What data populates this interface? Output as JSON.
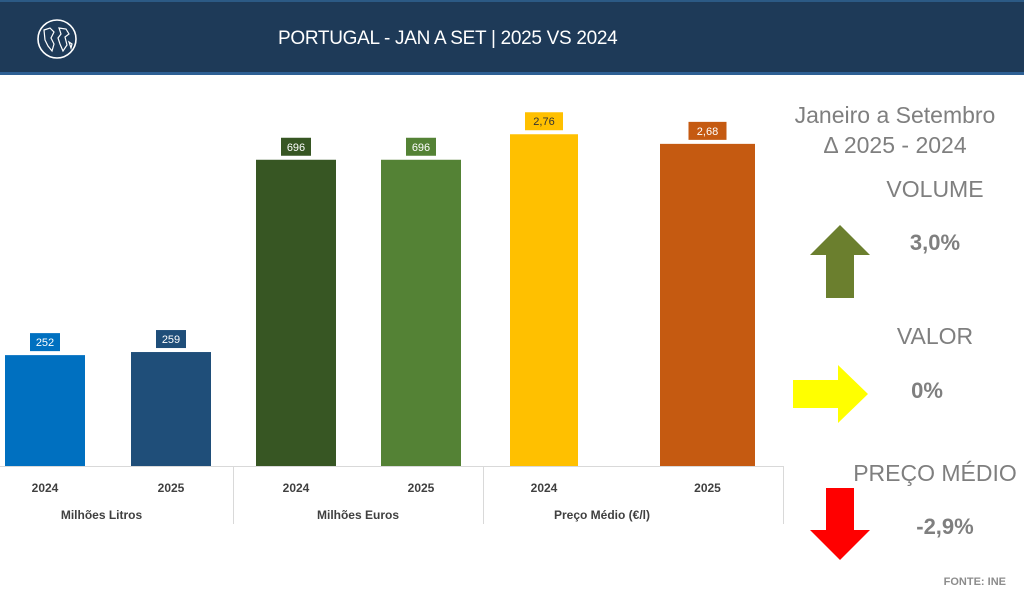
{
  "header": {
    "title": "PORTUGAL - JAN A SET | 2025 VS 2024",
    "icon": "globe-icon"
  },
  "chart_data": {
    "type": "bar",
    "groups": [
      {
        "label": "Milhões Litros",
        "categories": [
          "2024",
          "2025"
        ],
        "values": [
          252,
          259
        ],
        "labels": [
          "252",
          "259"
        ],
        "colors": [
          "#0070c0",
          "#1f4e79"
        ],
        "axis": "primary"
      },
      {
        "label": "Milhões Euros",
        "categories": [
          "2024",
          "2025"
        ],
        "values": [
          696,
          696
        ],
        "labels": [
          "696",
          "696"
        ],
        "colors": [
          "#375623",
          "#548235"
        ],
        "axis": "primary"
      },
      {
        "label": "Preço Médio (€/l)",
        "categories": [
          "2024",
          "2025"
        ],
        "values": [
          2.76,
          2.68
        ],
        "labels": [
          "2,76",
          "2,68"
        ],
        "colors": [
          "#ffc000",
          "#c55a11"
        ],
        "axis": "secondary"
      }
    ],
    "grid": false
  },
  "panel": {
    "title_line1": "Janeiro a Setembro",
    "title_line2": "Δ 2025 - 2024",
    "items": [
      {
        "label": "VOLUME",
        "value": "3,0%",
        "direction": "up",
        "color": "#6b7f2e"
      },
      {
        "label": "VALOR",
        "value": "0%",
        "direction": "right",
        "color": "#ffff00"
      },
      {
        "label": "PREÇO MÉDIO",
        "value": "-2,9%",
        "direction": "down",
        "color": "#ff0000"
      }
    ]
  },
  "source": "FONTE: INE"
}
